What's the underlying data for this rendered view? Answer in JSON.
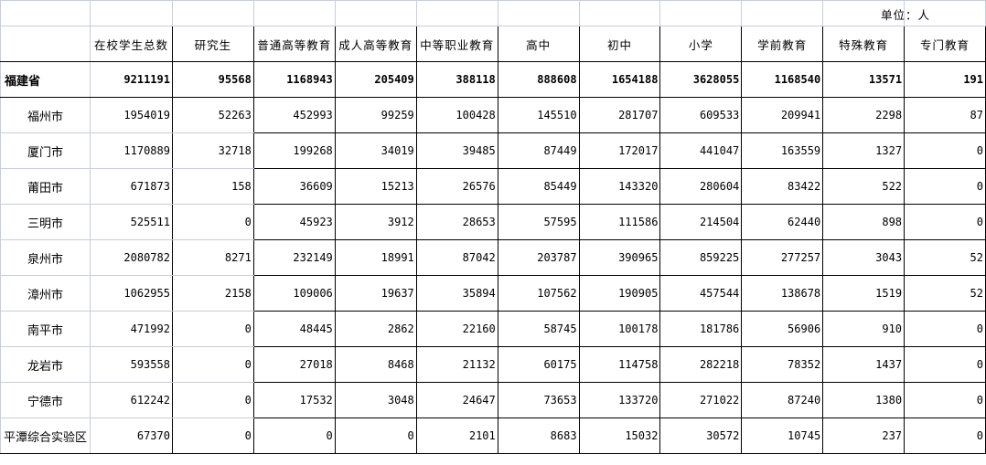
{
  "unit_label": "单位：人",
  "headers": [
    "",
    "在校学生总数",
    "研究生",
    "普通高等教育",
    "成人高等教育",
    "中等职业教育",
    "高中",
    "初中",
    "小学",
    "学前教育",
    "特殊教育",
    "专门教育"
  ],
  "rows": [
    {
      "name": "福建省",
      "values": [
        "9211191",
        "95568",
        "1168943",
        "205409",
        "388118",
        "888608",
        "1654188",
        "3628055",
        "1168540",
        "13571",
        "191"
      ]
    },
    {
      "name": "福州市",
      "values": [
        "1954019",
        "52263",
        "452993",
        "99259",
        "100428",
        "145510",
        "281707",
        "609533",
        "209941",
        "2298",
        "87"
      ]
    },
    {
      "name": "厦门市",
      "values": [
        "1170889",
        "32718",
        "199268",
        "34019",
        "39485",
        "87449",
        "172017",
        "441047",
        "163559",
        "1327",
        "0"
      ]
    },
    {
      "name": "莆田市",
      "values": [
        "671873",
        "158",
        "36609",
        "15213",
        "26576",
        "85449",
        "143320",
        "280604",
        "83422",
        "522",
        "0"
      ]
    },
    {
      "name": "三明市",
      "values": [
        "525511",
        "0",
        "45923",
        "3912",
        "28653",
        "57595",
        "111586",
        "214504",
        "62440",
        "898",
        "0"
      ]
    },
    {
      "name": "泉州市",
      "values": [
        "2080782",
        "8271",
        "232149",
        "18991",
        "87042",
        "203787",
        "390965",
        "859225",
        "277257",
        "3043",
        "52"
      ]
    },
    {
      "name": "漳州市",
      "values": [
        "1062955",
        "2158",
        "109006",
        "19637",
        "35894",
        "107562",
        "190905",
        "457544",
        "138678",
        "1519",
        "52"
      ]
    },
    {
      "name": "南平市",
      "values": [
        "471992",
        "0",
        "48445",
        "2862",
        "22160",
        "58745",
        "100178",
        "181786",
        "56906",
        "910",
        "0"
      ]
    },
    {
      "name": "龙岩市",
      "values": [
        "593558",
        "0",
        "27018",
        "8468",
        "21132",
        "60175",
        "114758",
        "282218",
        "78352",
        "1437",
        "0"
      ]
    },
    {
      "name": "宁德市",
      "values": [
        "612242",
        "0",
        "17532",
        "3048",
        "24647",
        "73653",
        "133720",
        "271022",
        "87240",
        "1380",
        "0"
      ]
    },
    {
      "name": "平潭综合实验区",
      "values": [
        "67370",
        "0",
        "0",
        "0",
        "2101",
        "8683",
        "15032",
        "30572",
        "10745",
        "237",
        "0"
      ]
    }
  ]
}
